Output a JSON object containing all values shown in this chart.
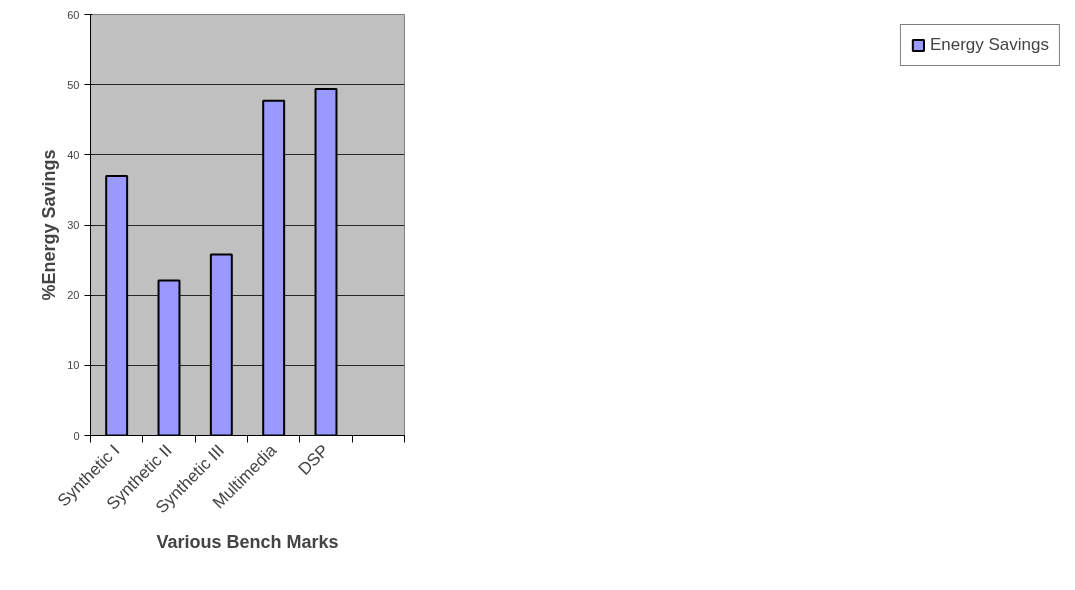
{
  "chart_data": {
    "type": "bar",
    "xlabel": "Various Bench Marks",
    "ylabel": "%Energy Savings",
    "categories": [
      "Synthetic I",
      "Synthetic II",
      "Synthetic III",
      "Multimedia",
      "DSP",
      null
    ],
    "series": [
      {
        "name": "Energy Savings",
        "color": "#9999ff",
        "values": [
          37.0,
          22.1,
          25.8,
          47.7,
          49.4,
          null
        ]
      }
    ],
    "ylim": [
      0,
      60
    ],
    "yticks": [
      0,
      10,
      20,
      30,
      40,
      50,
      60
    ],
    "grid": "y",
    "legend": "right"
  }
}
